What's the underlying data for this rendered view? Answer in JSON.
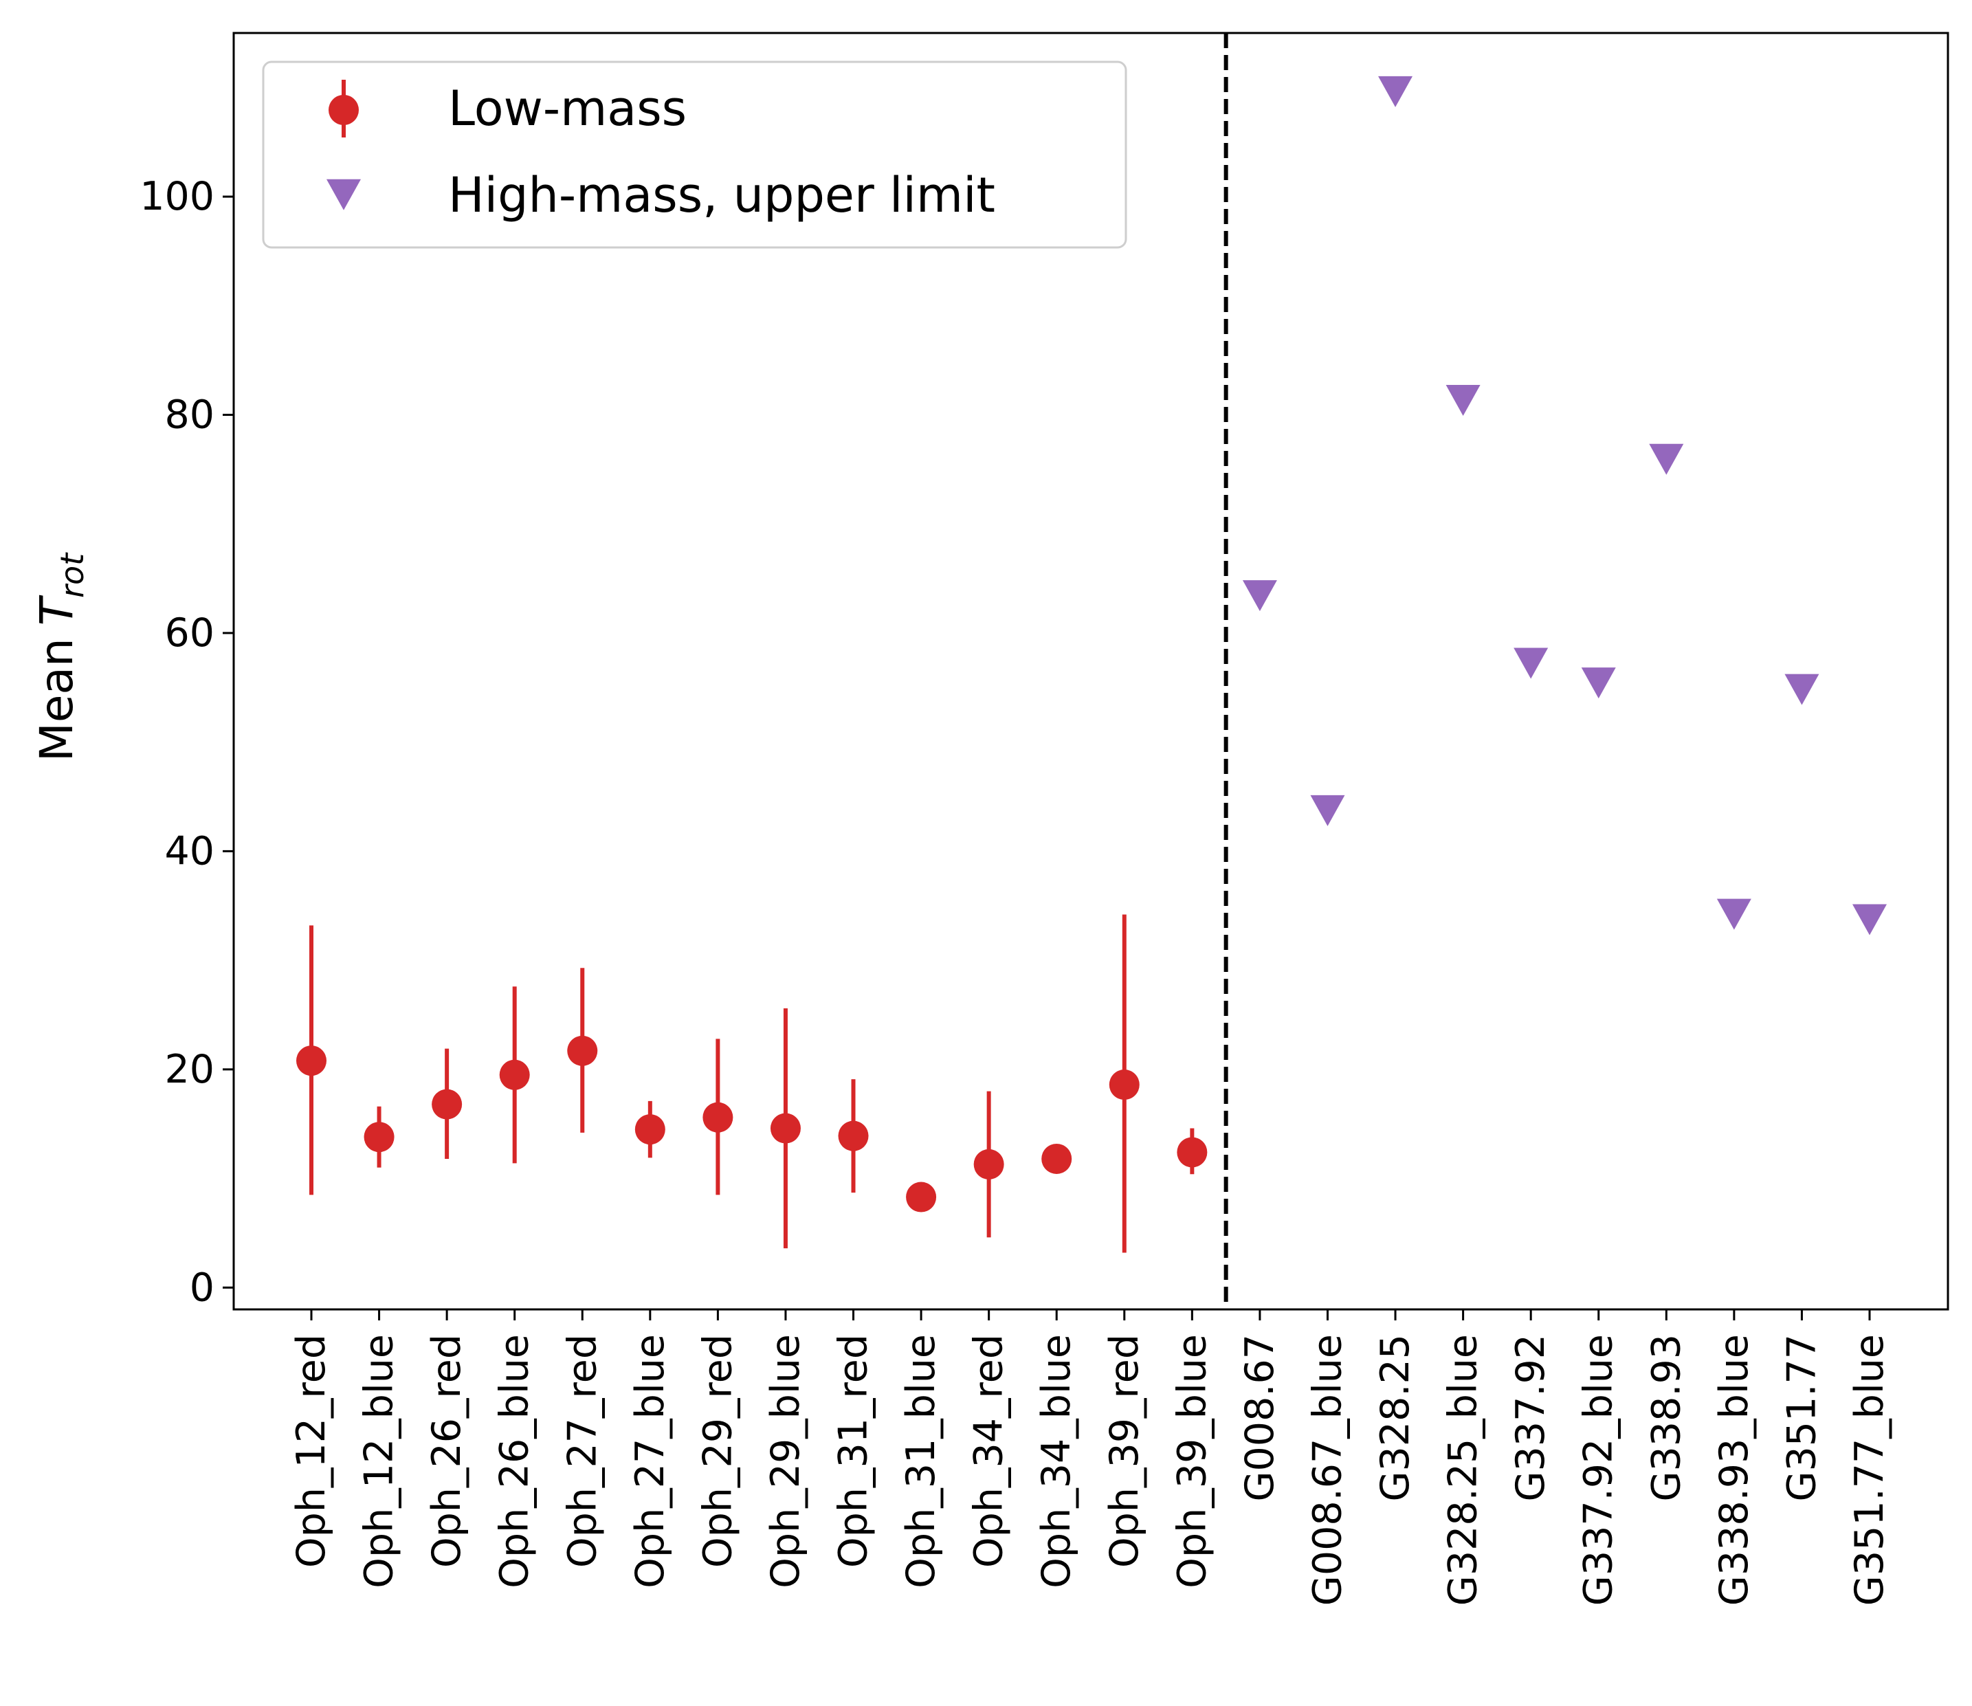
{
  "chart_data": {
    "type": "scatter",
    "title": "",
    "xlabel": "",
    "ylabel": "Mean",
    "ylabel_symbol": "T",
    "ylabel_subscript": "rot",
    "ylim": [
      -2,
      115
    ],
    "yticks": [
      0,
      20,
      40,
      60,
      80,
      100
    ],
    "grid": false,
    "legend_position": "top-left",
    "divider": "dashed vertical line between the last low-mass source and the first high-mass source",
    "categories": [
      "Oph_12_red",
      "Oph_12_blue",
      "Oph_26_red",
      "Oph_26_blue",
      "Oph_27_red",
      "Oph_27_blue",
      "Oph_29_red",
      "Oph_29_blue",
      "Oph_31_red",
      "Oph_31_blue",
      "Oph_34_red",
      "Oph_34_blue",
      "Oph_39_red",
      "Oph_39_blue",
      "G008.67",
      "G008.67_blue",
      "G328.25",
      "G328.25_blue",
      "G337.92",
      "G337.92_blue",
      "G338.93",
      "G338.93_blue",
      "G351.77",
      "G351.77_blue"
    ],
    "series": [
      {
        "name": "Low-mass",
        "marker": "circle",
        "color": "#d62728",
        "points": [
          {
            "x": "Oph_12_red",
            "y": 20.8,
            "yerr_low": 8.5,
            "yerr_high": 33.2
          },
          {
            "x": "Oph_12_blue",
            "y": 13.8,
            "yerr_low": 11.0,
            "yerr_high": 16.6
          },
          {
            "x": "Oph_26_red",
            "y": 16.8,
            "yerr_low": 11.8,
            "yerr_high": 21.9
          },
          {
            "x": "Oph_26_blue",
            "y": 19.5,
            "yerr_low": 11.4,
            "yerr_high": 27.6
          },
          {
            "x": "Oph_27_red",
            "y": 21.7,
            "yerr_low": 14.2,
            "yerr_high": 29.3
          },
          {
            "x": "Oph_27_blue",
            "y": 14.5,
            "yerr_low": 11.9,
            "yerr_high": 17.1
          },
          {
            "x": "Oph_29_red",
            "y": 15.6,
            "yerr_low": 8.5,
            "yerr_high": 22.8
          },
          {
            "x": "Oph_29_blue",
            "y": 14.6,
            "yerr_low": 3.6,
            "yerr_high": 25.6
          },
          {
            "x": "Oph_31_red",
            "y": 13.9,
            "yerr_low": 8.7,
            "yerr_high": 19.1
          },
          {
            "x": "Oph_31_blue",
            "y": 8.3,
            "yerr_low": 8.3,
            "yerr_high": 8.3
          },
          {
            "x": "Oph_34_red",
            "y": 11.3,
            "yerr_low": 4.6,
            "yerr_high": 18.0
          },
          {
            "x": "Oph_34_blue",
            "y": 11.8,
            "yerr_low": 11.8,
            "yerr_high": 11.8
          },
          {
            "x": "Oph_39_red",
            "y": 18.6,
            "yerr_low": 3.2,
            "yerr_high": 34.2
          },
          {
            "x": "Oph_39_blue",
            "y": 12.4,
            "yerr_low": 10.4,
            "yerr_high": 14.6
          }
        ]
      },
      {
        "name": "High-mass, upper limit",
        "marker": "triangle-down",
        "color": "#9467bd",
        "points": [
          {
            "x": "G008.67",
            "y": 63.5
          },
          {
            "x": "G008.67_blue",
            "y": 43.8
          },
          {
            "x": "G328.25",
            "y": 109.7
          },
          {
            "x": "G328.25_blue",
            "y": 81.4
          },
          {
            "x": "G337.92",
            "y": 57.3
          },
          {
            "x": "G337.92_blue",
            "y": 55.5
          },
          {
            "x": "G338.93",
            "y": 76.0
          },
          {
            "x": "G338.93_blue",
            "y": 34.3
          },
          {
            "x": "G351.77",
            "y": 54.9
          },
          {
            "x": "G351.77_blue",
            "y": 33.8
          }
        ]
      }
    ]
  }
}
